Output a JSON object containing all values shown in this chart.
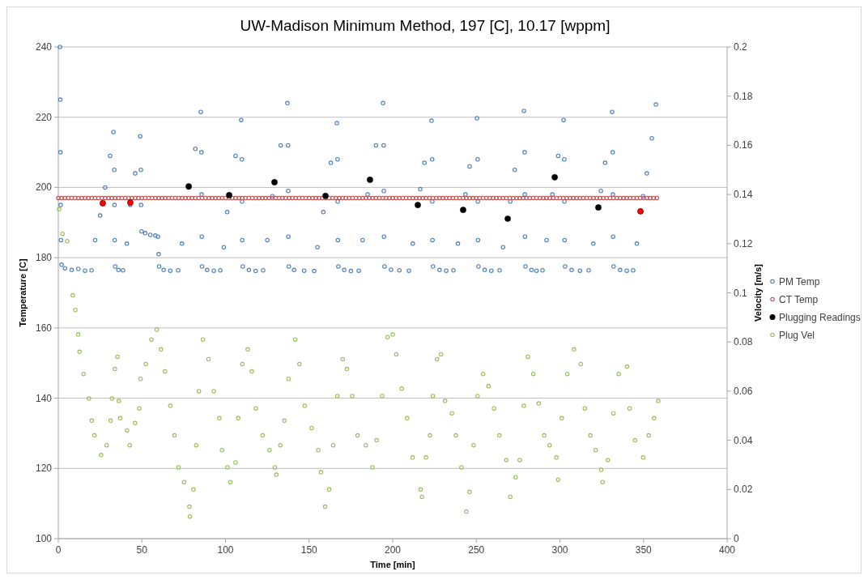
{
  "chart_data": {
    "type": "scatter",
    "title": "UW-Madison Minimum Method, 197 [C], 10.17 [wppm]",
    "xlabel": "Time [min]",
    "ylabel": "Temperature [C]",
    "y2label": "Velocity [m/s]",
    "xlim": [
      0,
      400
    ],
    "xticks": [
      0,
      50,
      100,
      150,
      200,
      250,
      300,
      350,
      400
    ],
    "ylim": [
      100,
      240
    ],
    "yticks": [
      100,
      120,
      140,
      160,
      180,
      200,
      220,
      240
    ],
    "y2lim": [
      0,
      0.2
    ],
    "y2ticks": [
      0,
      0.02,
      0.04,
      0.06,
      0.08,
      0.1,
      0.12,
      0.14,
      0.16,
      0.18,
      0.2
    ],
    "grid": "y",
    "legend": "right",
    "marker": "circle",
    "series": [
      {
        "name": "PM Temp",
        "color": "#4a7ebb",
        "x": [
          1.0,
          1.2,
          1.3,
          1.4,
          1.6,
          2,
          4,
          8,
          12,
          16,
          19.9,
          22,
          25,
          28,
          31,
          33,
          33.5,
          33.6,
          33.7,
          34,
          36,
          38.7,
          41,
          43,
          46,
          49,
          49.4,
          49.5,
          49.8,
          52,
          55,
          58,
          59.6,
          60,
          60.3,
          63,
          67,
          71.7,
          74,
          78,
          82,
          85.2,
          85.6,
          85.7,
          85.8,
          86,
          89,
          93,
          96.9,
          99,
          101,
          106,
          109.4,
          109.8,
          109.9,
          110,
          110.3,
          114,
          118,
          122.5,
          125,
          128,
          133,
          137,
          137.4,
          137.5,
          137.6,
          137.9,
          141,
          147,
          153,
          155,
          158.5,
          163,
          166.6,
          167,
          167.1,
          167.2,
          167.5,
          171,
          175,
          179.7,
          182,
          185,
          190,
          194.2,
          194.6,
          194.7,
          194.8,
          195.1,
          199,
          204,
          209.7,
          212,
          216.5,
          219,
          223.2,
          223.6,
          223.7,
          223.8,
          224.1,
          228,
          232,
          236.3,
          239,
          243.5,
          246,
          250.4,
          250.8,
          250.9,
          251,
          251.3,
          255,
          259,
          263.9,
          266,
          270.3,
          273,
          278.5,
          278.9,
          279,
          279.1,
          279.4,
          283,
          286,
          289.6,
          292,
          295.5,
          299,
          302.2,
          302.6,
          302.7,
          302.8,
          303.1,
          307,
          312,
          317.2,
          320,
          324.5,
          327,
          331.2,
          331.6,
          331.7,
          331.8,
          332.1,
          336,
          340,
          343.8,
          346,
          349.7,
          352,
          355,
          357.4
        ],
        "values": [
          240,
          225,
          210,
          195,
          185,
          178,
          177,
          176.5,
          176.8,
          176.3,
          176.4,
          185,
          192,
          200,
          209,
          215.8,
          205,
          195,
          185,
          177.5,
          176.5,
          176.4,
          184,
          195,
          204,
          214.6,
          205,
          195,
          187.5,
          187,
          186.5,
          186.3,
          186,
          181,
          177.5,
          176.5,
          176.3,
          176.4,
          184,
          200,
          211,
          221.5,
          210,
          198,
          186,
          177.5,
          176.5,
          176.3,
          176.4,
          183,
          193,
          209,
          219.2,
          208,
          196,
          185,
          177.5,
          176.5,
          176.2,
          176.4,
          185,
          197.5,
          212,
          224,
          212,
          199,
          186,
          177.5,
          176.5,
          176.3,
          176.2,
          183,
          193,
          207,
          218.3,
          208,
          196,
          185,
          177.5,
          176.5,
          176.2,
          176.3,
          185,
          198,
          212,
          224,
          212,
          199,
          186,
          177.5,
          176.6,
          176.4,
          176.3,
          184,
          199.5,
          207,
          219,
          208,
          196,
          185,
          177.5,
          176.5,
          176.3,
          176.4,
          184,
          198,
          206,
          219.7,
          208,
          196,
          185,
          177.5,
          176.5,
          176.3,
          176.4,
          183,
          196,
          205,
          221.8,
          210,
          198,
          186,
          177.5,
          176.5,
          176.3,
          176.4,
          185,
          198,
          209,
          219.2,
          208,
          196,
          185,
          177.5,
          176.5,
          176.3,
          176.4,
          184,
          199,
          207,
          221.5,
          210,
          198,
          186,
          177.5,
          176.5,
          176.3,
          176.4,
          184,
          197.5,
          204,
          214,
          223.6
        ]
      },
      {
        "name": "CT Temp",
        "color": "#c0504d",
        "x": [
          0,
          2,
          4,
          6,
          8,
          10,
          12,
          14,
          16,
          18,
          20,
          22,
          24,
          26,
          28,
          30,
          32,
          34,
          36,
          38,
          40,
          42,
          44,
          46,
          48,
          50,
          52,
          54,
          56,
          58,
          60,
          62,
          64,
          66,
          68,
          70,
          72,
          74,
          76,
          78,
          80,
          82,
          84,
          86,
          88,
          90,
          92,
          94,
          96,
          98,
          100,
          102,
          104,
          106,
          108,
          110,
          112,
          114,
          116,
          118,
          120,
          122,
          124,
          126,
          128,
          130,
          132,
          134,
          136,
          138,
          140,
          142,
          144,
          146,
          148,
          150,
          152,
          154,
          156,
          158,
          160,
          162,
          164,
          166,
          168,
          170,
          172,
          174,
          176,
          178,
          180,
          182,
          184,
          186,
          188,
          190,
          192,
          194,
          196,
          198,
          200,
          202,
          204,
          206,
          208,
          210,
          212,
          214,
          216,
          218,
          220,
          222,
          224,
          226,
          228,
          230,
          232,
          234,
          236,
          238,
          240,
          242,
          244,
          246,
          248,
          250,
          252,
          254,
          256,
          258,
          260,
          262,
          264,
          266,
          268,
          270,
          272,
          274,
          276,
          278,
          280,
          282,
          284,
          286,
          288,
          290,
          292,
          294,
          296,
          298,
          300,
          302,
          304,
          306,
          308,
          310,
          312,
          314,
          316,
          318,
          320,
          322,
          324,
          326,
          328,
          330,
          332,
          334,
          336,
          338,
          340,
          342,
          344,
          346,
          348,
          350,
          352,
          354,
          356,
          358
        ],
        "values": [
          197,
          197,
          197,
          197,
          197,
          197,
          197,
          197,
          197,
          197,
          197,
          197,
          197,
          197,
          197,
          197,
          197,
          197,
          197,
          197,
          197,
          197,
          197,
          197,
          197,
          197,
          197,
          197,
          197,
          197,
          197,
          197,
          197,
          197,
          197,
          197,
          197,
          197,
          197,
          197,
          197,
          197,
          197,
          197,
          197,
          197,
          197,
          197,
          197,
          197,
          197,
          197,
          197,
          197,
          197,
          197,
          197,
          197,
          197,
          197,
          197,
          197,
          197,
          197,
          197,
          197,
          197,
          197,
          197,
          197,
          197,
          197,
          197,
          197,
          197,
          197,
          197,
          197,
          197,
          197,
          197,
          197,
          197,
          197,
          197,
          197,
          197,
          197,
          197,
          197,
          197,
          197,
          197,
          197,
          197,
          197,
          197,
          197,
          197,
          197,
          197,
          197,
          197,
          197,
          197,
          197,
          197,
          197,
          197,
          197,
          197,
          197,
          197,
          197,
          197,
          197,
          197,
          197,
          197,
          197,
          197,
          197,
          197,
          197,
          197,
          197,
          197,
          197,
          197,
          197,
          197,
          197,
          197,
          197,
          197,
          197,
          197,
          197,
          197,
          197,
          197,
          197,
          197,
          197,
          197,
          197,
          197,
          197,
          197,
          197,
          197,
          197,
          197,
          197,
          197,
          197,
          197,
          197,
          197,
          197,
          197,
          197,
          197,
          197,
          197,
          197,
          197,
          197,
          197,
          197,
          197,
          197,
          197,
          197,
          197,
          197,
          197,
          197,
          197,
          197
        ]
      },
      {
        "name": "Plugging Readings",
        "color": "#000000",
        "x": [
          26.6,
          43.1,
          78,
          102.2,
          129.3,
          159.8,
          186.4,
          215,
          242.1,
          268.8,
          296.9,
          323,
          348.2
        ],
        "values": [
          195.5,
          195.7,
          200.3,
          197.8,
          201.5,
          197.6,
          202.2,
          195,
          193.6,
          191.1,
          202.9,
          194.3,
          193.2
        ],
        "colors": [
          "#ff0000",
          "#ff0000",
          "#000000",
          "#000000",
          "#000000",
          "#000000",
          "#000000",
          "#000000",
          "#000000",
          "#000000",
          "#000000",
          "#000000",
          "#ff0000"
        ]
      },
      {
        "name": "Plug Vel",
        "color": "#9bbb59",
        "axis": "y2",
        "x": [
          0.5,
          2.5,
          5.3,
          8.7,
          10.2,
          11.9,
          12.7,
          15.1,
          18.3,
          20,
          21.6,
          25.6,
          28.9,
          31.3,
          32.1,
          33.8,
          35.4,
          36.2,
          37,
          41.1,
          42.7,
          45.9,
          48.4,
          49.2,
          52.4,
          55.7,
          58.9,
          61.4,
          63.8,
          67,
          69.5,
          71.9,
          75.2,
          78.4,
          78.7,
          80.8,
          82.5,
          84.1,
          86.5,
          89.8,
          93,
          96.3,
          97.9,
          101.1,
          102.9,
          106,
          107.6,
          110.1,
          113.3,
          115.7,
          118.2,
          122.2,
          126.3,
          129.5,
          130.4,
          132.8,
          135.2,
          137.7,
          141.7,
          144.2,
          147.4,
          151.5,
          155.5,
          157.1,
          159.6,
          162,
          164.4,
          166.9,
          170.1,
          172.6,
          175.8,
          179,
          183.9,
          187.9,
          190.4,
          193.7,
          196.9,
          200,
          202.1,
          205.4,
          208.6,
          211.9,
          216.7,
          217.5,
          219.9,
          222.3,
          224,
          226.5,
          228.9,
          231.3,
          235.4,
          237.8,
          241.1,
          244,
          245.9,
          248.4,
          250.8,
          254.1,
          257.3,
          260.6,
          263.8,
          267.9,
          270.3,
          273.5,
          276,
          278.4,
          280.8,
          284.1,
          287.3,
          290.6,
          293.8,
          297.9,
          298.9,
          301.1,
          304.4,
          308.4,
          312.5,
          314.9,
          318.2,
          321.4,
          324.7,
          325.5,
          328.7,
          332,
          335.2,
          340.1,
          341.7,
          344.9,
          349.8,
          353.1,
          356.3,
          358.8
        ],
        "values": [
          0.134,
          0.124,
          0.121,
          0.099,
          0.093,
          0.083,
          0.076,
          0.067,
          0.057,
          0.048,
          0.042,
          0.034,
          0.038,
          0.048,
          0.057,
          0.069,
          0.074,
          0.056,
          0.049,
          0.044,
          0.038,
          0.047,
          0.053,
          0.065,
          0.071,
          0.081,
          0.085,
          0.077,
          0.068,
          0.054,
          0.042,
          0.029,
          0.023,
          0.013,
          0.009,
          0.02,
          0.038,
          0.06,
          0.081,
          0.073,
          0.06,
          0.049,
          0.036,
          0.029,
          0.023,
          0.031,
          0.049,
          0.071,
          0.077,
          0.068,
          0.053,
          0.042,
          0.036,
          0.029,
          0.026,
          0.038,
          0.048,
          0.065,
          0.081,
          0.071,
          0.054,
          0.045,
          0.036,
          0.027,
          0.013,
          0.02,
          0.038,
          0.058,
          0.073,
          0.069,
          0.058,
          0.042,
          0.038,
          0.029,
          0.04,
          0.058,
          0.082,
          0.083,
          0.075,
          0.061,
          0.049,
          0.033,
          0.02,
          0.017,
          0.033,
          0.042,
          0.058,
          0.073,
          0.075,
          0.056,
          0.051,
          0.042,
          0.029,
          0.011,
          0.019,
          0.038,
          0.058,
          0.067,
          0.062,
          0.053,
          0.042,
          0.032,
          0.017,
          0.025,
          0.032,
          0.054,
          0.074,
          0.067,
          0.055,
          0.042,
          0.038,
          0.033,
          0.024,
          0.049,
          0.067,
          0.077,
          0.071,
          0.053,
          0.042,
          0.036,
          0.028,
          0.023,
          0.032,
          0.051,
          0.067,
          0.07,
          0.053,
          0.04,
          0.033,
          0.042,
          0.049,
          0.056
        ]
      }
    ]
  }
}
